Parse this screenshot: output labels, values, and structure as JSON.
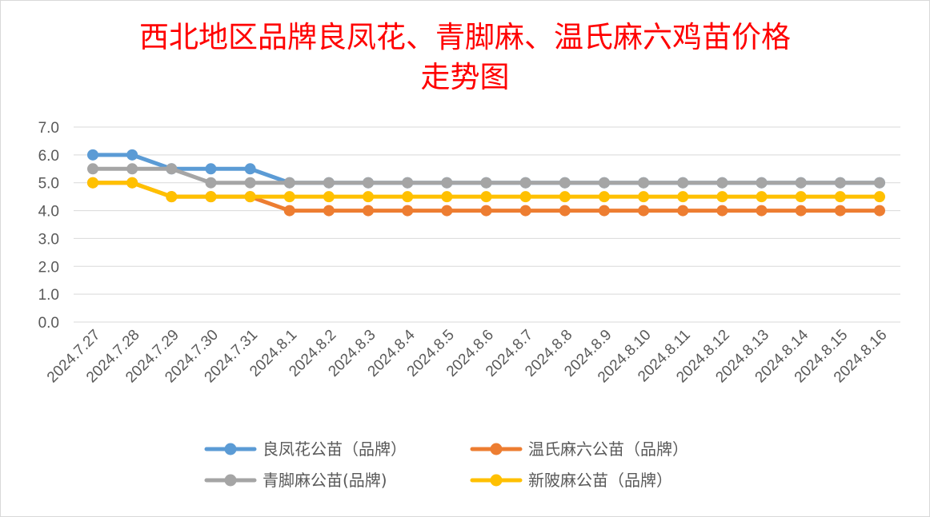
{
  "title": {
    "line1": "西北地区品牌良凤花、青脚麻、温氏麻六鸡苗价格",
    "line2": "走势图"
  },
  "chart_data": {
    "type": "line",
    "title": "西北地区品牌良凤花、青脚麻、温氏麻六鸡苗价格走势图",
    "xlabel": "",
    "ylabel": "",
    "ylim": [
      0,
      7
    ],
    "yticks": [
      "0.0",
      "1.0",
      "2.0",
      "3.0",
      "4.0",
      "5.0",
      "6.0",
      "7.0"
    ],
    "grid": true,
    "legend_position": "bottom",
    "categories": [
      "2024.7.27",
      "2024.7.28",
      "2024.7.29",
      "2024.7.30",
      "2024.7.31",
      "2024.8.1",
      "2024.8.2",
      "2024.8.3",
      "2024.8.4",
      "2024.8.5",
      "2024.8.6",
      "2024.8.7",
      "2024.8.8",
      "2024.8.9",
      "2024.8.10",
      "2024.8.11",
      "2024.8.12",
      "2024.8.13",
      "2024.8.14",
      "2024.8.15",
      "2024.8.16"
    ],
    "series": [
      {
        "name": "良凤花公苗（品牌）",
        "color": "#5b9bd5",
        "values": [
          6.0,
          6.0,
          5.5,
          5.5,
          5.5,
          5.0,
          5.0,
          5.0,
          5.0,
          5.0,
          5.0,
          5.0,
          5.0,
          5.0,
          5.0,
          5.0,
          5.0,
          5.0,
          5.0,
          5.0,
          5.0
        ]
      },
      {
        "name": "温氏麻六公苗（品牌）",
        "color": "#ed7d31",
        "values": [
          5.0,
          5.0,
          4.5,
          4.5,
          4.5,
          4.0,
          4.0,
          4.0,
          4.0,
          4.0,
          4.0,
          4.0,
          4.0,
          4.0,
          4.0,
          4.0,
          4.0,
          4.0,
          4.0,
          4.0,
          4.0
        ]
      },
      {
        "name": "青脚麻公苗(品牌)",
        "color": "#a5a5a5",
        "values": [
          5.5,
          5.5,
          5.5,
          5.0,
          5.0,
          5.0,
          5.0,
          5.0,
          5.0,
          5.0,
          5.0,
          5.0,
          5.0,
          5.0,
          5.0,
          5.0,
          5.0,
          5.0,
          5.0,
          5.0,
          5.0
        ]
      },
      {
        "name": "新陂麻公苗（品牌）",
        "color": "#ffc000",
        "values": [
          5.0,
          5.0,
          4.5,
          4.5,
          4.5,
          4.5,
          4.5,
          4.5,
          4.5,
          4.5,
          4.5,
          4.5,
          4.5,
          4.5,
          4.5,
          4.5,
          4.5,
          4.5,
          4.5,
          4.5,
          4.5
        ]
      }
    ],
    "draw_order": [
      1,
      0,
      2,
      3
    ]
  }
}
